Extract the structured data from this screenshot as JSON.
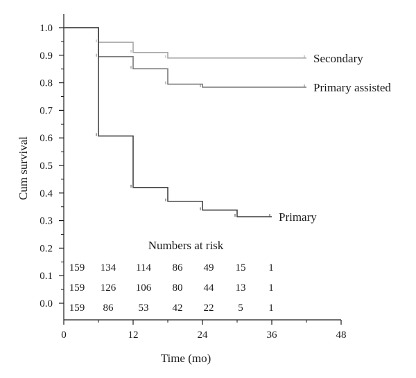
{
  "chart_data": {
    "type": "line",
    "step": true,
    "xlabel": "Time (mo)",
    "ylabel": "Cum survival",
    "xlim": [
      0,
      48
    ],
    "ylim": [
      0,
      1
    ],
    "x_ticks": [
      0,
      12,
      24,
      36,
      48
    ],
    "x_minor_ticks": [
      6,
      18,
      30,
      42
    ],
    "y_ticks": [
      0.0,
      0.1,
      0.2,
      0.3,
      0.4,
      0.5,
      0.6,
      0.7,
      0.8,
      0.9,
      1.0
    ],
    "y_tick_labels": [
      "0.0",
      "0.1",
      "0.2",
      "0.3",
      "0.4",
      "0.5",
      "0.6",
      "0.7",
      "0.8",
      "0.9",
      "1.0"
    ],
    "x_tick_labels": [
      "0",
      "12",
      "24",
      "36",
      "48"
    ],
    "grid": false,
    "series": [
      {
        "name": "Secondary",
        "color": "#a6a6a6",
        "steps": [
          [
            0,
            1.0
          ],
          [
            6,
            0.947
          ],
          [
            12,
            0.91
          ],
          [
            18,
            0.89
          ],
          [
            42,
            0.89
          ]
        ]
      },
      {
        "name": "Primary assisted",
        "color": "#7a7a7a",
        "steps": [
          [
            0,
            1.0
          ],
          [
            6,
            0.895
          ],
          [
            12,
            0.851
          ],
          [
            18,
            0.795
          ],
          [
            24,
            0.784
          ],
          [
            42,
            0.784
          ]
        ]
      },
      {
        "name": "Primary",
        "color": "#444444",
        "steps": [
          [
            0,
            1.0
          ],
          [
            6,
            0.607
          ],
          [
            12,
            0.42
          ],
          [
            18,
            0.37
          ],
          [
            24,
            0.338
          ],
          [
            30,
            0.314
          ],
          [
            36,
            0.314
          ]
        ]
      }
    ],
    "numbers_at_risk": {
      "title": "Numbers at risk",
      "times": [
        0,
        6,
        12,
        18,
        24,
        30,
        36
      ],
      "rows": [
        [
          "159",
          "134",
          "114",
          "86",
          "49",
          "15",
          "1"
        ],
        [
          "159",
          "126",
          "106",
          "80",
          "44",
          "13",
          "1"
        ],
        [
          "159",
          "86",
          "53",
          "42",
          "22",
          "5",
          "1"
        ]
      ]
    }
  }
}
